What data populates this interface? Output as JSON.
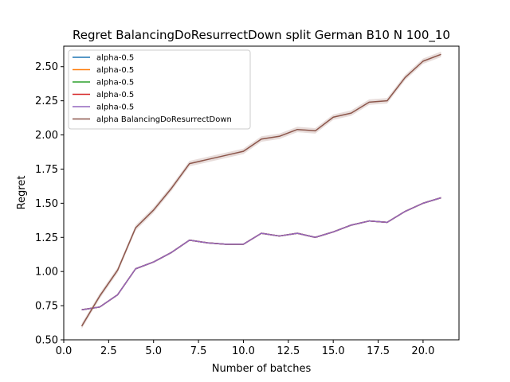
{
  "chart_data": {
    "type": "line",
    "title": "Regret BalancingDoResurrectDown split German B10 N 100_10",
    "xlabel": "Number of batches",
    "ylabel": "Regret",
    "xlim": [
      0.0,
      22.0
    ],
    "ylim": [
      0.5,
      2.65
    ],
    "xticks": [
      0.0,
      2.5,
      5.0,
      7.5,
      10.0,
      12.5,
      15.0,
      17.5,
      20.0
    ],
    "xtick_labels": [
      "0.0",
      "2.5",
      "5.0",
      "7.5",
      "10.0",
      "12.5",
      "15.0",
      "17.5",
      "20.0"
    ],
    "yticks": [
      0.5,
      0.75,
      1.0,
      1.25,
      1.5,
      1.75,
      2.0,
      2.25,
      2.5
    ],
    "ytick_labels": [
      "0.50",
      "0.75",
      "1.00",
      "1.25",
      "1.50",
      "1.75",
      "2.00",
      "2.25",
      "2.50"
    ],
    "grid": false,
    "legend_position": "top-left",
    "x": [
      1,
      2,
      3,
      4,
      5,
      6,
      7,
      8,
      9,
      10,
      11,
      12,
      13,
      14,
      15,
      16,
      17,
      18,
      19,
      20,
      21
    ],
    "series": [
      {
        "name": "alpha-0.5",
        "color": "#1f77b4",
        "values": [
          0.72,
          0.74,
          0.83,
          1.02,
          1.07,
          1.14,
          1.23,
          1.21,
          1.2,
          1.2,
          1.28,
          1.26,
          1.28,
          1.25,
          1.29,
          1.34,
          1.37,
          1.36,
          1.44,
          1.5,
          1.54
        ],
        "band": 0.005
      },
      {
        "name": "alpha-0.5",
        "color": "#ff7f0e",
        "values": [
          0.72,
          0.74,
          0.83,
          1.02,
          1.07,
          1.14,
          1.23,
          1.21,
          1.2,
          1.2,
          1.28,
          1.26,
          1.28,
          1.25,
          1.29,
          1.34,
          1.37,
          1.36,
          1.44,
          1.5,
          1.54
        ],
        "band": 0.005
      },
      {
        "name": "alpha-0.5",
        "color": "#2ca02c",
        "values": [
          0.72,
          0.74,
          0.83,
          1.02,
          1.07,
          1.14,
          1.23,
          1.21,
          1.2,
          1.2,
          1.28,
          1.26,
          1.28,
          1.25,
          1.29,
          1.34,
          1.37,
          1.36,
          1.44,
          1.5,
          1.54
        ],
        "band": 0.005
      },
      {
        "name": "alpha-0.5",
        "color": "#d62728",
        "values": [
          0.72,
          0.74,
          0.83,
          1.02,
          1.07,
          1.14,
          1.23,
          1.21,
          1.2,
          1.2,
          1.28,
          1.26,
          1.28,
          1.25,
          1.29,
          1.34,
          1.37,
          1.36,
          1.44,
          1.5,
          1.54
        ],
        "band": 0.005
      },
      {
        "name": "alpha-0.5",
        "color": "#9467bd",
        "values": [
          0.72,
          0.74,
          0.83,
          1.02,
          1.07,
          1.14,
          1.23,
          1.21,
          1.2,
          1.2,
          1.28,
          1.26,
          1.28,
          1.25,
          1.29,
          1.34,
          1.37,
          1.36,
          1.44,
          1.5,
          1.54
        ],
        "band": 0.005
      },
      {
        "name": "alpha BalancingDoResurrectDown",
        "color": "#8c564b",
        "values": [
          0.6,
          0.82,
          1.01,
          1.32,
          1.45,
          1.61,
          1.79,
          1.82,
          1.85,
          1.88,
          1.97,
          1.99,
          2.04,
          2.03,
          2.13,
          2.16,
          2.24,
          2.25,
          2.42,
          2.54,
          2.59
        ],
        "band": 0.02
      }
    ]
  }
}
